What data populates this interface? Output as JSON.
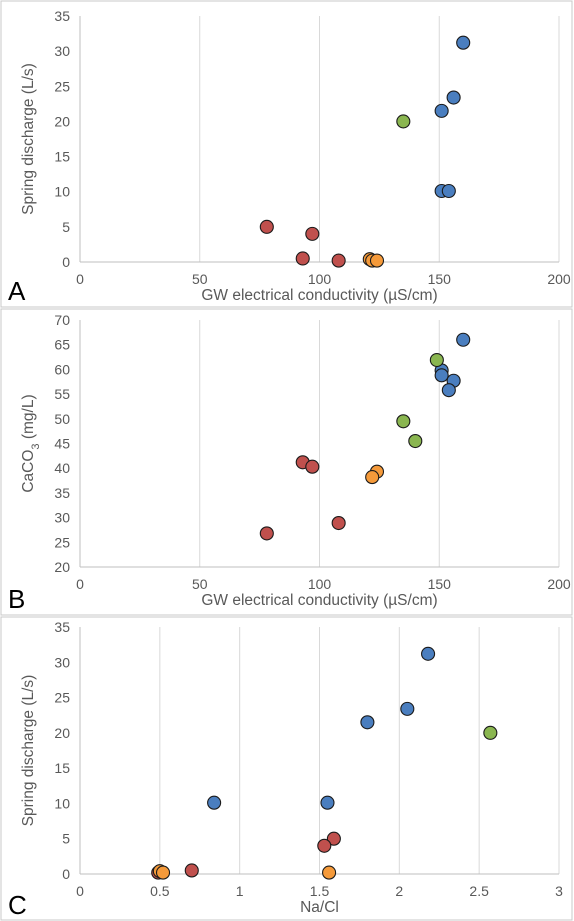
{
  "colors": {
    "blue": "#4a7ebf",
    "green": "#8ab650",
    "red": "#c0504d",
    "orange": "#f59a3a"
  },
  "chart_data": [
    {
      "id": "A",
      "type": "scatter",
      "panel_label": "A",
      "xlabel": "GW electrical conductivity (µS/cm)",
      "ylabel": "Spring discharge (L/s)",
      "xlim": [
        0,
        200
      ],
      "ylim": [
        0,
        35
      ],
      "xticks": [
        0,
        50,
        100,
        150,
        200
      ],
      "yticks": [
        0,
        5,
        10,
        15,
        20,
        25,
        30,
        35
      ],
      "x_grid": true,
      "y_grid": false,
      "points": [
        {
          "x": 160,
          "y": 31.2,
          "color": "blue"
        },
        {
          "x": 156,
          "y": 23.4,
          "color": "blue"
        },
        {
          "x": 151,
          "y": 21.5,
          "color": "blue"
        },
        {
          "x": 151,
          "y": 10.1,
          "color": "blue"
        },
        {
          "x": 154,
          "y": 10.1,
          "color": "blue"
        },
        {
          "x": 135,
          "y": 20.0,
          "color": "green"
        },
        {
          "x": 78,
          "y": 5.0,
          "color": "red"
        },
        {
          "x": 97,
          "y": 4.0,
          "color": "red"
        },
        {
          "x": 93,
          "y": 0.5,
          "color": "red"
        },
        {
          "x": 108,
          "y": 0.2,
          "color": "red"
        },
        {
          "x": 121,
          "y": 0.4,
          "color": "orange"
        },
        {
          "x": 122,
          "y": 0.2,
          "color": "orange"
        },
        {
          "x": 124,
          "y": 0.2,
          "color": "orange"
        }
      ]
    },
    {
      "id": "B",
      "type": "scatter",
      "panel_label": "B",
      "xlabel": "GW electrical conductivity (µS/cm)",
      "ylabel_main": "CaCO",
      "ylabel_sub": "3",
      "ylabel_tail": " (mg/L)",
      "xlim": [
        0,
        200
      ],
      "ylim": [
        20,
        70
      ],
      "xticks": [
        0,
        50,
        100,
        150,
        200
      ],
      "yticks": [
        20,
        25,
        30,
        35,
        40,
        45,
        50,
        55,
        60,
        65,
        70
      ],
      "x_grid": true,
      "y_grid": false,
      "points": [
        {
          "x": 160,
          "y": 66.0,
          "color": "blue"
        },
        {
          "x": 151,
          "y": 59.8,
          "color": "blue"
        },
        {
          "x": 151,
          "y": 58.8,
          "color": "blue"
        },
        {
          "x": 156,
          "y": 57.7,
          "color": "blue"
        },
        {
          "x": 154,
          "y": 55.8,
          "color": "blue"
        },
        {
          "x": 149,
          "y": 61.9,
          "color": "green"
        },
        {
          "x": 135,
          "y": 49.5,
          "color": "green"
        },
        {
          "x": 140,
          "y": 45.5,
          "color": "green"
        },
        {
          "x": 93,
          "y": 41.2,
          "color": "red"
        },
        {
          "x": 97,
          "y": 40.3,
          "color": "red"
        },
        {
          "x": 108,
          "y": 28.9,
          "color": "red"
        },
        {
          "x": 78,
          "y": 26.8,
          "color": "red"
        },
        {
          "x": 124,
          "y": 39.3,
          "color": "orange"
        },
        {
          "x": 122,
          "y": 38.2,
          "color": "orange"
        }
      ]
    },
    {
      "id": "C",
      "type": "scatter",
      "panel_label": "C",
      "xlabel": "Na/Cl",
      "ylabel": "Spring discharge (L/s)",
      "xlim": [
        0,
        3
      ],
      "ylim": [
        0,
        35
      ],
      "xticks": [
        0,
        0.5,
        1,
        1.5,
        2,
        2.5,
        3
      ],
      "yticks": [
        0,
        5,
        10,
        15,
        20,
        25,
        30,
        35
      ],
      "x_grid": true,
      "y_grid": false,
      "points": [
        {
          "x": 2.18,
          "y": 31.2,
          "color": "blue"
        },
        {
          "x": 2.05,
          "y": 23.4,
          "color": "blue"
        },
        {
          "x": 1.8,
          "y": 21.5,
          "color": "blue"
        },
        {
          "x": 0.84,
          "y": 10.1,
          "color": "blue"
        },
        {
          "x": 1.55,
          "y": 10.1,
          "color": "blue"
        },
        {
          "x": 2.57,
          "y": 20.0,
          "color": "green"
        },
        {
          "x": 1.59,
          "y": 5.0,
          "color": "red"
        },
        {
          "x": 1.53,
          "y": 4.0,
          "color": "red"
        },
        {
          "x": 0.7,
          "y": 0.5,
          "color": "red"
        },
        {
          "x": 0.49,
          "y": 0.2,
          "color": "red"
        },
        {
          "x": 0.5,
          "y": 0.4,
          "color": "orange"
        },
        {
          "x": 0.52,
          "y": 0.2,
          "color": "orange"
        },
        {
          "x": 1.56,
          "y": 0.2,
          "color": "orange"
        }
      ]
    }
  ]
}
